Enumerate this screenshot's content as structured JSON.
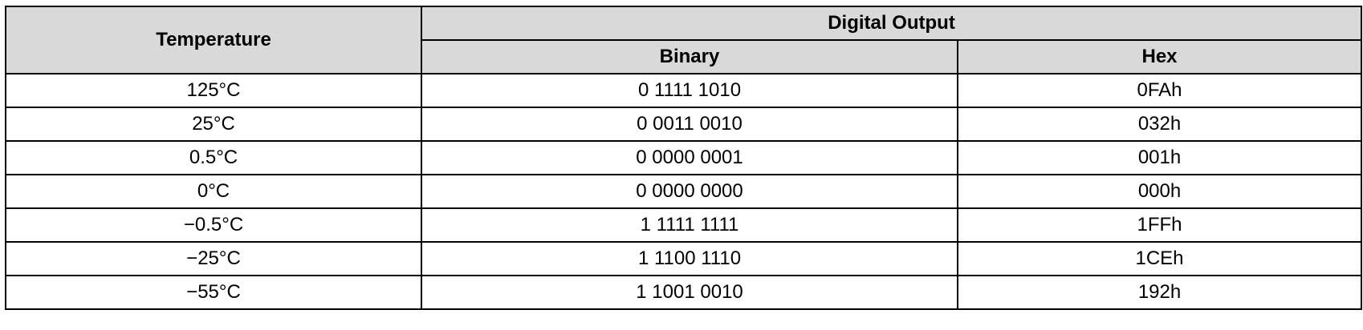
{
  "table": {
    "header": {
      "temperature": "Temperature",
      "digital_output": "Digital Output",
      "binary": "Binary",
      "hex": "Hex"
    },
    "rows": [
      {
        "temperature": "125°C",
        "binary": "0 1111 1010",
        "hex": "0FAh"
      },
      {
        "temperature": "25°C",
        "binary": "0 0011 0010",
        "hex": "032h"
      },
      {
        "temperature": "0.5°C",
        "binary": "0 0000 0001",
        "hex": "001h"
      },
      {
        "temperature": "0°C",
        "binary": "0 0000 0000",
        "hex": "000h"
      },
      {
        "temperature": "−0.5°C",
        "binary": "1 1111 1111",
        "hex": "1FFh"
      },
      {
        "temperature": "−25°C",
        "binary": "1 1100 1110",
        "hex": "1CEh"
      },
      {
        "temperature": "−55°C",
        "binary": "1 1001 0010",
        "hex": "192h"
      }
    ]
  }
}
